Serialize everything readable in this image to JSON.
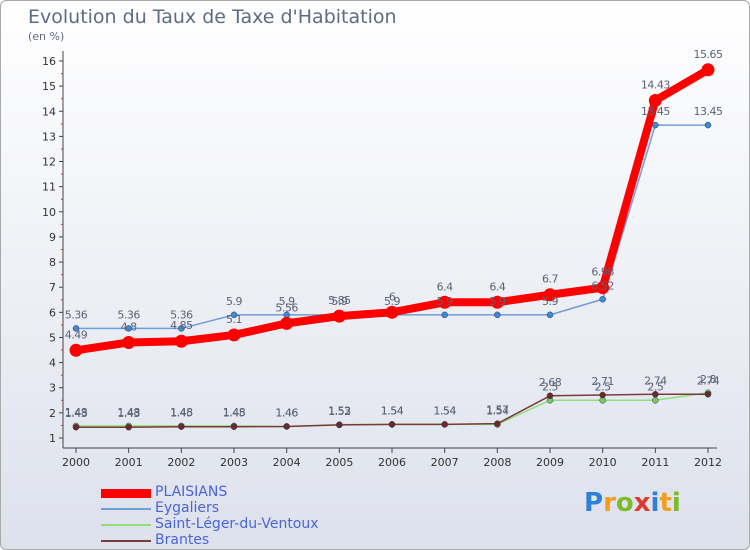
{
  "header": {
    "title": "Evolution du Taux de Taxe d'Habitation",
    "subtitle": "(en %)"
  },
  "logo": {
    "text": "Proxiti",
    "letters": [
      "P",
      "r",
      "o",
      "x",
      "i",
      "t",
      "i"
    ],
    "colors": [
      "#2f7fd6",
      "#f29f1c",
      "#7dbb2a",
      "#e03a2f",
      "#2f7fd6",
      "#f29f1c",
      "#7dbb2a"
    ]
  },
  "chart_data": {
    "type": "line",
    "title": "Evolution du Taux de Taxe d'Habitation",
    "subtitle": "(en %)",
    "x": [
      "2000",
      "2001",
      "2002",
      "2003",
      "2004",
      "2005",
      "2006",
      "2007",
      "2008",
      "2009",
      "2010",
      "2011",
      "2012"
    ],
    "ylim": [
      1,
      16
    ],
    "yticks": [
      1,
      2,
      3,
      4,
      5,
      6,
      7,
      8,
      9,
      10,
      11,
      12,
      13,
      14,
      15,
      16
    ],
    "grid": false,
    "legend_position": "bottom-left",
    "series": [
      {
        "name": "Eygaliers",
        "color": "#6e9ed8",
        "marker_color": "#3c8ad6",
        "values": [
          5.36,
          5.36,
          5.36,
          5.9,
          5.9,
          5.9,
          5.9,
          5.9,
          5.9,
          5.9,
          6.52,
          13.45,
          13.45
        ],
        "labels": [
          "5.36",
          "5.36",
          "5.36",
          "5.9",
          "5.9",
          "5.9",
          "5.9",
          "5.9",
          "5.9",
          "5.9",
          "6.52",
          "13.45",
          "13.45"
        ]
      },
      {
        "name": "Saint-Léger-du-Ventoux",
        "color": "#8fe07a",
        "marker_color": "#7ac860",
        "values": [
          1.48,
          1.48,
          1.48,
          1.48,
          1.46,
          1.53,
          1.54,
          1.54,
          1.54,
          2.5,
          2.5,
          2.5,
          2.8
        ],
        "labels": [
          "1.48",
          "1.48",
          "1.48",
          "1.48",
          "1.46",
          "1.53",
          "1.54",
          "1.54",
          "1.54",
          "2.5",
          "2.5",
          "2.5",
          "2.8"
        ]
      },
      {
        "name": "Brantes",
        "color": "#7a3b3b",
        "marker_color": "#6a2a2a",
        "values": [
          1.43,
          1.43,
          1.45,
          1.45,
          1.46,
          1.52,
          1.54,
          1.54,
          1.57,
          2.68,
          2.71,
          2.74,
          2.74
        ],
        "labels": [
          "1.43",
          "1.43",
          "1.45",
          "1.45",
          "1.46",
          "1.52",
          "1.54",
          "1.54",
          "1.57",
          "2.68",
          "2.71",
          "2.74",
          "2.74"
        ]
      },
      {
        "name": "PLAISIANS",
        "color": "#ff0000",
        "marker_color": "#ff0000",
        "values": [
          4.49,
          4.8,
          4.85,
          5.1,
          5.56,
          5.85,
          6.0,
          6.4,
          6.4,
          6.7,
          6.98,
          14.43,
          15.65
        ],
        "labels": [
          "4.49",
          "4.8",
          "4.85",
          "5.1",
          "5.56",
          "5.85",
          "6",
          "6.4",
          "6.4",
          "6.7",
          "6.98",
          "14.43",
          "15.65"
        ]
      }
    ],
    "legend": [
      {
        "name": "PLAISIANS",
        "color": "#ff0000",
        "thickness": "thick"
      },
      {
        "name": "Eygaliers",
        "color": "#6e9ed8",
        "thickness": "thin"
      },
      {
        "name": "Saint-Léger-du-Ventoux",
        "color": "#8fe07a",
        "thickness": "thin"
      },
      {
        "name": "Brantes",
        "color": "#7a3b3b",
        "thickness": "thin"
      }
    ]
  }
}
